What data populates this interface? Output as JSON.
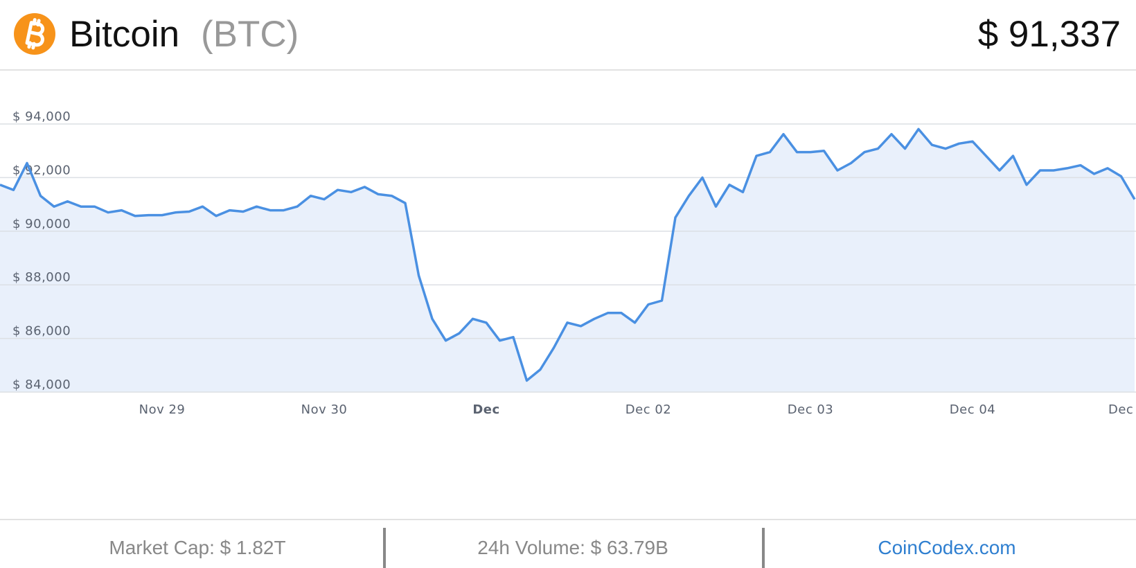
{
  "header": {
    "name": "Bitcoin",
    "symbol": "(BTC)",
    "price": "$ 91,337"
  },
  "chart_data": {
    "type": "area",
    "color": "#4a90e2",
    "fill": "#e9f0fb",
    "grid": true,
    "values": [
      91730,
      91540,
      92540,
      91320,
      90920,
      91110,
      90920,
      90920,
      90700,
      90780,
      90570,
      90600,
      90600,
      90700,
      90730,
      90920,
      90570,
      90780,
      90730,
      90920,
      90780,
      90780,
      90920,
      91320,
      91190,
      91540,
      91460,
      91650,
      91380,
      91320,
      91050,
      88350,
      86730,
      85920,
      86190,
      86730,
      86590,
      85920,
      86050,
      84430,
      84840,
      85650,
      86590,
      86460,
      86730,
      86950,
      86950,
      86590,
      87270,
      87410,
      90510,
      91320,
      92000,
      90920,
      91730,
      91460,
      92810,
      92950,
      93620,
      92950,
      92950,
      93000,
      92270,
      92540,
      92950,
      93080,
      93620,
      93080,
      93810,
      93220,
      93080,
      93270,
      93350,
      92810,
      92270,
      92810,
      91730,
      92270,
      92270,
      92350,
      92460,
      92140,
      92350,
      92050,
      91190
    ],
    "xlim": [
      0,
      84
    ],
    "xticks": [
      {
        "value": 12,
        "label": "Nov 29"
      },
      {
        "value": 24,
        "label": "Nov 30"
      },
      {
        "value": 36,
        "label": "Dec"
      },
      {
        "value": 48,
        "label": "Dec 02"
      },
      {
        "value": 60,
        "label": "Dec 03"
      },
      {
        "value": 72,
        "label": "Dec 04"
      },
      {
        "value": 84,
        "label": "Dec"
      }
    ],
    "ylim": [
      84000,
      94000
    ],
    "yticks": [
      {
        "value": 84000,
        "label": "$ 84,000"
      },
      {
        "value": 86000,
        "label": "$ 86,000"
      },
      {
        "value": 88000,
        "label": "$ 88,000"
      },
      {
        "value": 90000,
        "label": "$ 90,000"
      },
      {
        "value": 92000,
        "label": "$ 92,000"
      },
      {
        "value": 94000,
        "label": "$ 94,000"
      }
    ]
  },
  "footer": {
    "market_cap": "Market Cap: $ 1.82T",
    "volume": "24h Volume: $ 63.79B",
    "site": "CoinCodex.com"
  }
}
